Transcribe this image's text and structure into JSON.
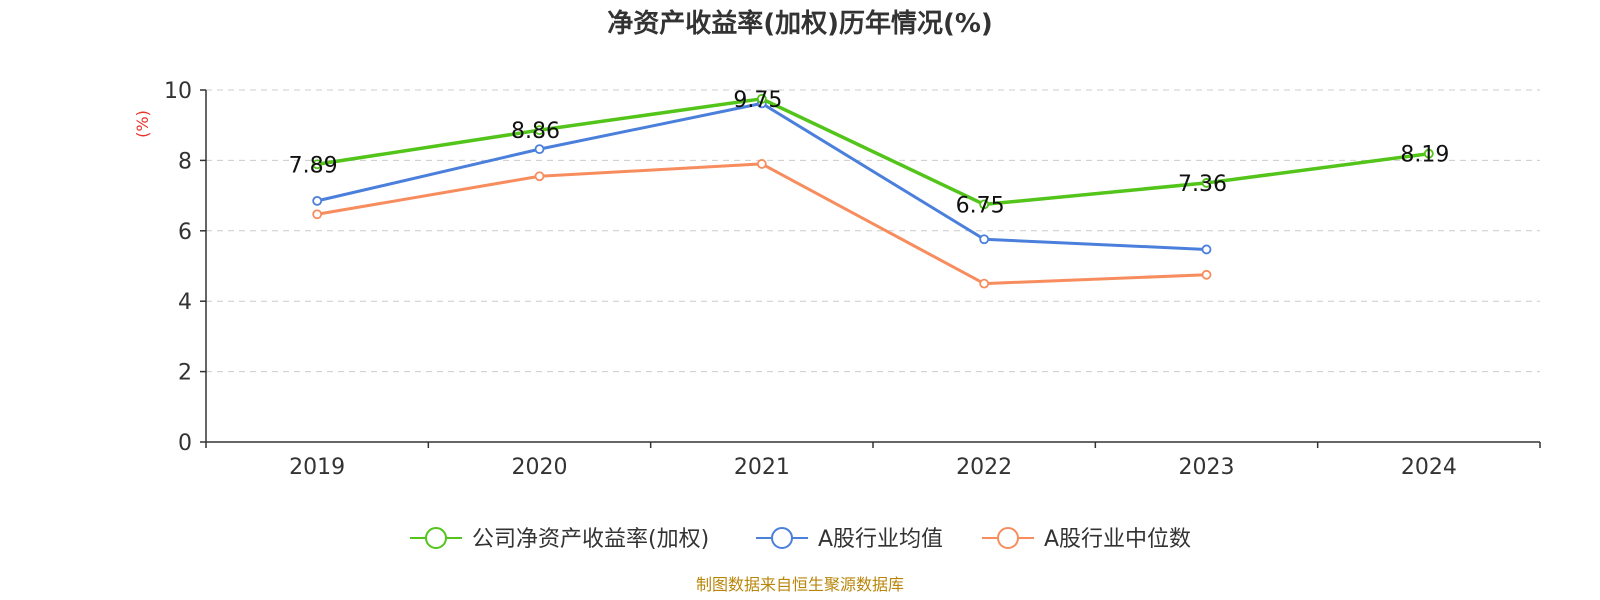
{
  "chart_data": {
    "type": "line",
    "title": "净资产收益率(加权)历年情况(%)",
    "ylabel": "(%)",
    "xlabel": "",
    "categories": [
      "2019",
      "2020",
      "2021",
      "2022",
      "2023",
      "2024"
    ],
    "ylim": [
      0,
      10
    ],
    "yticks": [
      0,
      2,
      4,
      6,
      8,
      10
    ],
    "grid": true,
    "legend_position": "bottom",
    "series": [
      {
        "name": "公司净资产收益率(加权)",
        "color": "#52c41a",
        "values": [
          7.89,
          8.86,
          9.75,
          6.75,
          7.36,
          8.19
        ],
        "labels": [
          "7.89",
          "8.86",
          "9.75",
          "6.75",
          "7.36",
          "8.19"
        ]
      },
      {
        "name": "A股行业均值",
        "color": "#4a7fdc",
        "values": [
          6.85,
          8.32,
          9.62,
          5.76,
          5.47,
          null
        ]
      },
      {
        "name": "A股行业中位数",
        "color": "#f78d5e",
        "values": [
          6.47,
          7.55,
          7.9,
          4.5,
          4.75,
          null
        ]
      }
    ]
  },
  "footer": {
    "source": "制图数据来自恒生聚源数据库"
  }
}
